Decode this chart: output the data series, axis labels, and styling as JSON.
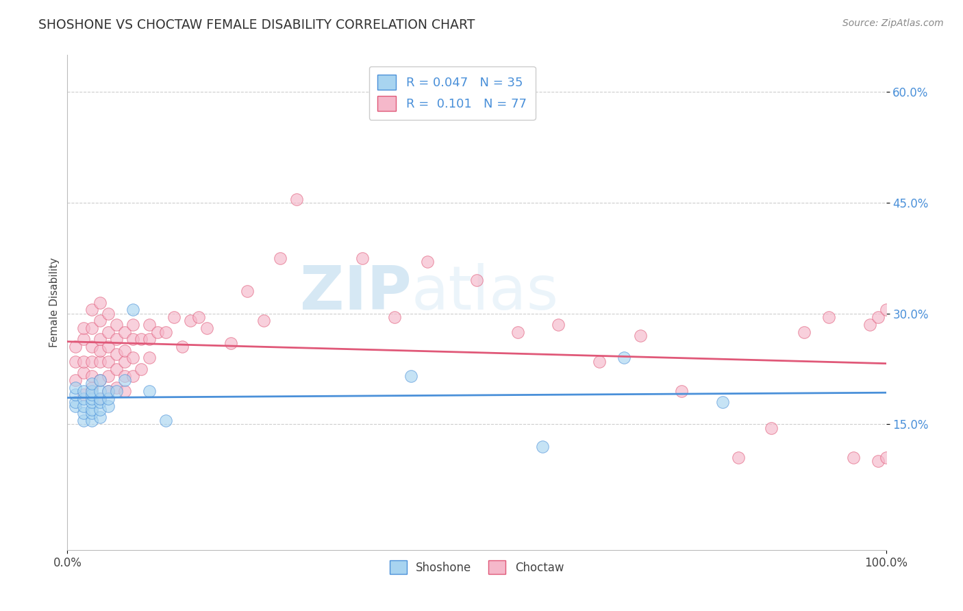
{
  "title": "SHOSHONE VS CHOCTAW FEMALE DISABILITY CORRELATION CHART",
  "source": "Source: ZipAtlas.com",
  "ylabel": "Female Disability",
  "xlabel": "",
  "xlim": [
    0.0,
    1.0
  ],
  "ylim": [
    -0.02,
    0.65
  ],
  "ytick_vals": [
    0.15,
    0.3,
    0.45,
    0.6
  ],
  "ytick_labels": [
    "15.0%",
    "30.0%",
    "45.0%",
    "60.0%"
  ],
  "xtick_vals": [
    0.0,
    1.0
  ],
  "xtick_labels": [
    "0.0%",
    "100.0%"
  ],
  "legend_R_shoshone": "0.047",
  "legend_N_shoshone": "35",
  "legend_R_choctaw": "0.101",
  "legend_N_choctaw": "77",
  "shoshone_color": "#a8d4f0",
  "choctaw_color": "#f5b8ca",
  "shoshone_line_color": "#4a90d9",
  "choctaw_line_color": "#e05878",
  "watermark_zip": "ZIP",
  "watermark_atlas": "atlas",
  "shoshone_x": [
    0.01,
    0.01,
    0.01,
    0.01,
    0.02,
    0.02,
    0.02,
    0.02,
    0.02,
    0.03,
    0.03,
    0.03,
    0.03,
    0.03,
    0.03,
    0.03,
    0.03,
    0.04,
    0.04,
    0.04,
    0.04,
    0.04,
    0.04,
    0.05,
    0.05,
    0.05,
    0.06,
    0.07,
    0.08,
    0.1,
    0.12,
    0.42,
    0.58,
    0.68,
    0.8
  ],
  "shoshone_y": [
    0.175,
    0.18,
    0.19,
    0.2,
    0.155,
    0.165,
    0.175,
    0.185,
    0.195,
    0.155,
    0.165,
    0.17,
    0.18,
    0.185,
    0.19,
    0.195,
    0.205,
    0.16,
    0.17,
    0.18,
    0.185,
    0.195,
    0.21,
    0.175,
    0.185,
    0.195,
    0.195,
    0.21,
    0.305,
    0.195,
    0.155,
    0.215,
    0.12,
    0.24,
    0.18
  ],
  "choctaw_x": [
    0.01,
    0.01,
    0.01,
    0.02,
    0.02,
    0.02,
    0.02,
    0.02,
    0.03,
    0.03,
    0.03,
    0.03,
    0.03,
    0.03,
    0.04,
    0.04,
    0.04,
    0.04,
    0.04,
    0.04,
    0.04,
    0.05,
    0.05,
    0.05,
    0.05,
    0.05,
    0.05,
    0.06,
    0.06,
    0.06,
    0.06,
    0.06,
    0.07,
    0.07,
    0.07,
    0.07,
    0.07,
    0.08,
    0.08,
    0.08,
    0.08,
    0.09,
    0.09,
    0.1,
    0.1,
    0.1,
    0.11,
    0.12,
    0.13,
    0.14,
    0.15,
    0.16,
    0.17,
    0.2,
    0.22,
    0.24,
    0.26,
    0.28,
    0.36,
    0.4,
    0.44,
    0.5,
    0.55,
    0.6,
    0.65,
    0.7,
    0.75,
    0.82,
    0.86,
    0.9,
    0.93,
    0.96,
    0.98,
    0.99,
    0.99,
    1.0,
    1.0
  ],
  "choctaw_y": [
    0.21,
    0.235,
    0.255,
    0.19,
    0.22,
    0.235,
    0.265,
    0.28,
    0.2,
    0.215,
    0.235,
    0.255,
    0.28,
    0.305,
    0.185,
    0.21,
    0.235,
    0.25,
    0.265,
    0.29,
    0.315,
    0.195,
    0.215,
    0.235,
    0.255,
    0.275,
    0.3,
    0.2,
    0.225,
    0.245,
    0.265,
    0.285,
    0.195,
    0.215,
    0.235,
    0.25,
    0.275,
    0.215,
    0.24,
    0.265,
    0.285,
    0.225,
    0.265,
    0.24,
    0.265,
    0.285,
    0.275,
    0.275,
    0.295,
    0.255,
    0.29,
    0.295,
    0.28,
    0.26,
    0.33,
    0.29,
    0.375,
    0.455,
    0.375,
    0.295,
    0.37,
    0.345,
    0.275,
    0.285,
    0.235,
    0.27,
    0.195,
    0.105,
    0.145,
    0.275,
    0.295,
    0.105,
    0.285,
    0.1,
    0.295,
    0.105,
    0.305
  ]
}
